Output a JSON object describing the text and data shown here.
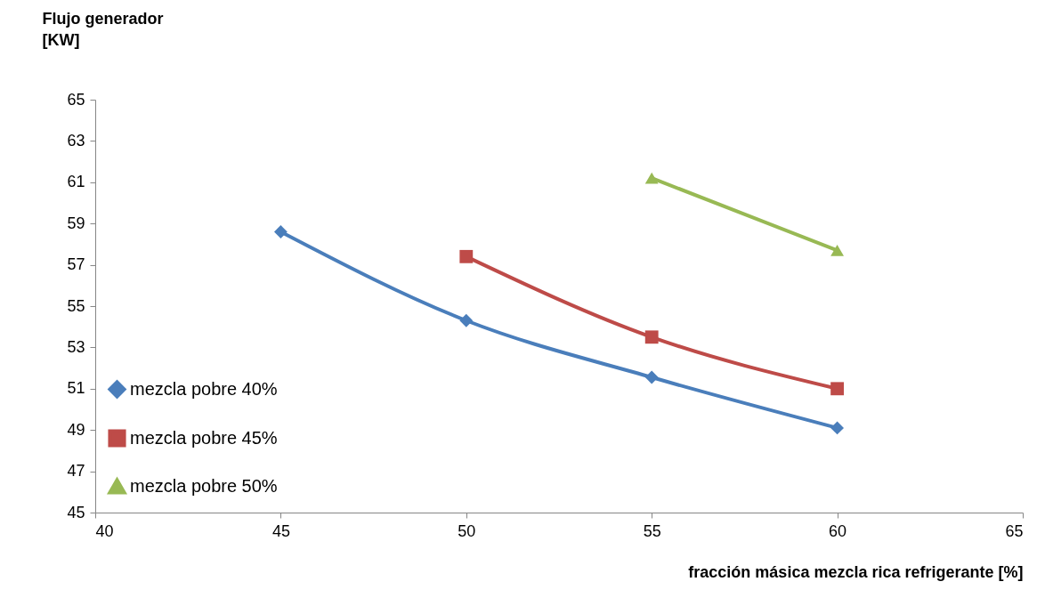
{
  "chart_data": {
    "type": "line",
    "xlabel": "fracción másica mezcla rica refrigerante [%]",
    "ylabel": "Flujo generador [KW]",
    "xlim": [
      40,
      65
    ],
    "xticks": [
      40,
      45,
      50,
      55,
      60,
      65
    ],
    "ylim": [
      45,
      65
    ],
    "yticks": [
      45,
      47,
      49,
      51,
      53,
      55,
      57,
      59,
      61,
      63,
      65
    ],
    "grid": false,
    "legend": "bottom left",
    "line_style": "solid",
    "series": [
      {
        "name": "mezcla pobre 40%",
        "color": "#4a7ebb",
        "marker": "diamond",
        "x": [
          45,
          50,
          55,
          60
        ],
        "values": [
          58.6,
          54.3,
          51.55,
          49.1
        ]
      },
      {
        "name": "mezcla pobre 45%",
        "color": "#be4b48",
        "marker": "square",
        "x": [
          50,
          55,
          60
        ],
        "values": [
          57.4,
          53.5,
          51.0
        ]
      },
      {
        "name": "mezcla pobre 50%",
        "color": "#98b954",
        "marker": "triangle",
        "x": [
          55,
          60
        ],
        "values": [
          61.2,
          57.7
        ]
      }
    ]
  }
}
